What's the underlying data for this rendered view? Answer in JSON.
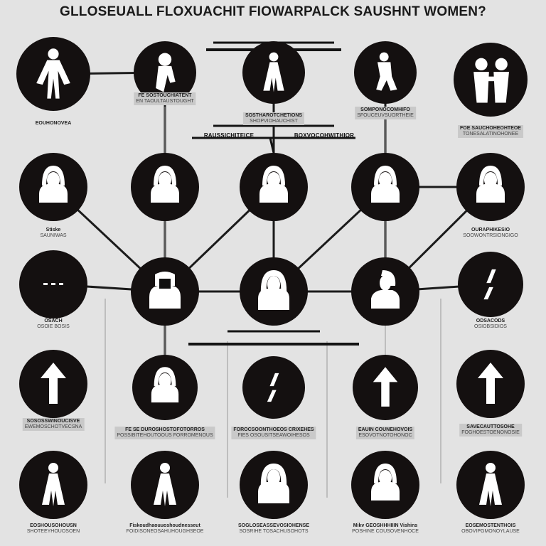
{
  "title": "GLLOSEUALL FLOXUACHIT FIOWARPALCK SAUSHNT WOMEN?",
  "header": {
    "left_label": "RAUSSICHITEICE",
    "right_label": "BOXVOCOHWITHIOR"
  },
  "nodes": [
    {
      "id": "n1",
      "icon": "woman-full-figure-icon",
      "label": "EOUHONOVEA",
      "sub": "",
      "boxed": false
    },
    {
      "id": "n2",
      "icon": "woman-silhouette-icon",
      "label": "FE SOSTOUCHIATENT",
      "sub": "EN TAOULTAUSTOUGHT",
      "boxed": true
    },
    {
      "id": "n3",
      "icon": "woman-dress-icon",
      "label": "SOSTHAROTCHETIONS",
      "sub": "SHOPVIOHAUCHIST",
      "boxed": true
    },
    {
      "id": "n4",
      "icon": "woman-kneeling-icon",
      "label": "SOMPONOCOMHIFO",
      "sub": "SFOUCEUVSUORTHEIE",
      "boxed": true
    },
    {
      "id": "n5",
      "icon": "couple-embrace-icon",
      "label": "FOE SAUCHOHEOHTEOE",
      "sub": "TONESALATINOHONEE",
      "boxed": true
    },
    {
      "id": "n6",
      "icon": "woman-bust-icon",
      "label": "Stiske",
      "sub": "SAUNIWAS",
      "boxed": false
    },
    {
      "id": "n7",
      "icon": "woman-bust-icon",
      "label": "",
      "sub": "",
      "boxed": false
    },
    {
      "id": "n8",
      "icon": "woman-bust-icon",
      "label": "",
      "sub": "",
      "boxed": false
    },
    {
      "id": "n9",
      "icon": "woman-bust-icon",
      "label": "",
      "sub": "",
      "boxed": false
    },
    {
      "id": "n10",
      "icon": "woman-hood-icon",
      "label": "OURAPHIKESIO",
      "sub": "SOOWONTRSIONGIGO",
      "boxed": false
    },
    {
      "id": "n11",
      "icon": "dash-icon",
      "label": "OSACH",
      "sub": "OSOIE BOSIS",
      "boxed": false
    },
    {
      "id": "n12",
      "icon": "woman-veil-icon",
      "label": "",
      "sub": "",
      "boxed": false
    },
    {
      "id": "n13",
      "icon": "woman-long-hair-icon",
      "label": "",
      "sub": "",
      "boxed": false
    },
    {
      "id": "n14",
      "icon": "woman-profile-icon",
      "label": "",
      "sub": "",
      "boxed": false
    },
    {
      "id": "n15",
      "icon": "slash-marks-icon",
      "label": "ODSACODS",
      "sub": "OSIOBSIDIOS",
      "boxed": false
    },
    {
      "id": "n16",
      "icon": "arrow-up-icon",
      "label": "SOSOSSWINOUCISVE",
      "sub": "EWEMOSCHOTVECSNA",
      "boxed": true
    },
    {
      "id": "n17",
      "icon": "woman-bust-icon",
      "label": "FE SE DUROSHOSTOFOTORROS",
      "sub": "POSSIBITEHOUTOOUS FORROMENOUS",
      "boxed": true
    },
    {
      "id": "n18",
      "icon": "slash-marks-icon",
      "label": "FOROCSOONTHOEOS CRIXEHES",
      "sub": "FIES OSOUSITSEAWOIHESOS",
      "boxed": true
    },
    {
      "id": "n19",
      "icon": "arrow-up-icon",
      "label": "EAUIN COUNEHOVOIS",
      "sub": "ESOVOTNOTOHONOC",
      "boxed": true
    },
    {
      "id": "n20",
      "icon": "arrow-up-icon",
      "label": "SAVECAUTTOSOHE",
      "sub": "FOGHOESTOENONOSIE",
      "boxed": true
    },
    {
      "id": "n21",
      "icon": "woman-dress-icon",
      "label": "EOSHOUSOHOUSN",
      "sub": "SHOTEEYHOUOSOEN",
      "boxed": false
    },
    {
      "id": "n22",
      "icon": "woman-dress-icon",
      "label": "Fiskoudhaouuoshoudnesseut",
      "sub": "FOIDISONEOSAHUHOUGHSEOE",
      "boxed": false
    },
    {
      "id": "n23",
      "icon": "woman-long-hair-icon",
      "label": "SOGLOSEASSEVOSIOHENSE",
      "sub": "SOSRIHE TOSACHUSOHOTS",
      "boxed": false
    },
    {
      "id": "n24",
      "icon": "woman-bust-icon",
      "label": "Mikv GEOSHHHIIIN Vishins",
      "sub": "POSHINE COUSOVENHOCE",
      "boxed": false
    },
    {
      "id": "n25",
      "icon": "woman-dress-icon",
      "label": "EOSEMOSTENTHOIS",
      "sub": "OBOVIPGMONOYLAUSE",
      "boxed": false
    }
  ]
}
